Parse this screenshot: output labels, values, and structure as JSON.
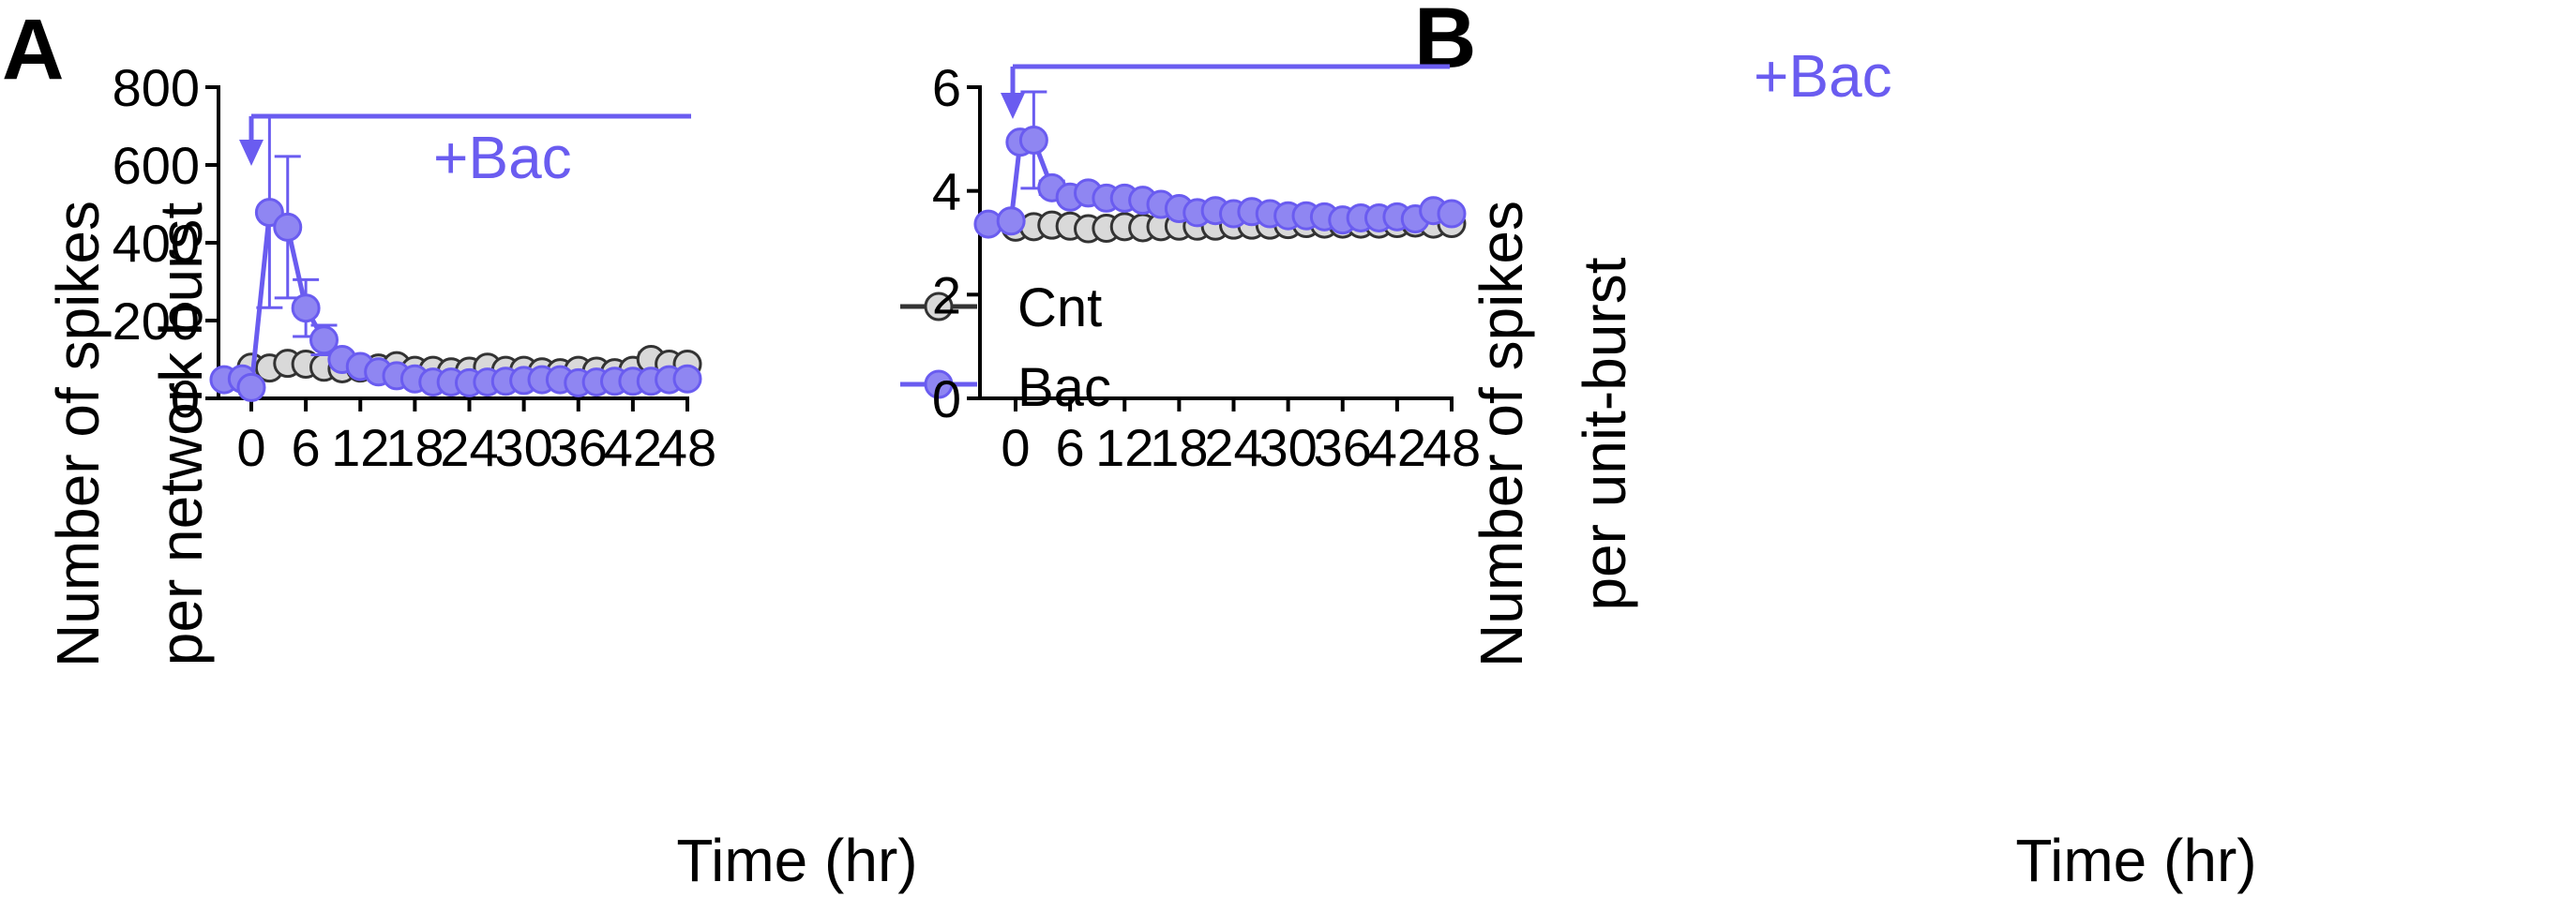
{
  "colors": {
    "cnt": "#333333",
    "cnt_fill": "#d9d9d9",
    "bac": "#6a5cf0",
    "bac_fill": "#8f86f2"
  },
  "chart_data": [
    {
      "type": "scatter",
      "panel": "A",
      "annotation": "+Bac",
      "ylabel_lines": [
        "Number of spikes",
        "per network burst"
      ],
      "xlabel": "Time (hr)",
      "xlim": [
        -3,
        48
      ],
      "ylim": [
        0,
        800
      ],
      "xticks": [
        0,
        6,
        12,
        18,
        24,
        30,
        36,
        42,
        48
      ],
      "yticks": [
        0,
        200,
        400,
        600,
        800
      ],
      "legend": {
        "position": "top-right",
        "entries": [
          "Cnt",
          "Bac"
        ]
      },
      "series": [
        {
          "name": "Cnt",
          "x": [
            0,
            2,
            4,
            6,
            8,
            10,
            12,
            14,
            16,
            18,
            20,
            22,
            24,
            26,
            28,
            30,
            32,
            34,
            36,
            38,
            40,
            42,
            44,
            46,
            48
          ],
          "y": [
            80,
            78,
            90,
            88,
            80,
            76,
            78,
            78,
            84,
            72,
            72,
            68,
            70,
            80,
            72,
            72,
            68,
            66,
            72,
            70,
            66,
            72,
            100,
            88,
            88
          ],
          "err": [
            0,
            0,
            18,
            18,
            0,
            0,
            0,
            14,
            14,
            12,
            12,
            0,
            0,
            18,
            14,
            0,
            0,
            0,
            18,
            14,
            0,
            0,
            18,
            14,
            0
          ]
        },
        {
          "name": "Bac",
          "x": [
            -3,
            -1,
            0,
            2,
            4,
            6,
            8,
            10,
            12,
            14,
            16,
            18,
            20,
            22,
            24,
            26,
            28,
            30,
            32,
            34,
            36,
            38,
            40,
            42,
            44,
            46,
            48
          ],
          "y": [
            48,
            50,
            28,
            478,
            440,
            232,
            150,
            100,
            82,
            68,
            58,
            50,
            42,
            42,
            40,
            42,
            44,
            46,
            48,
            48,
            40,
            42,
            44,
            44,
            44,
            48,
            50
          ],
          "err": [
            0,
            0,
            0,
            245,
            182,
            73,
            38,
            0,
            0,
            0,
            0,
            0,
            0,
            0,
            0,
            0,
            0,
            0,
            0,
            0,
            0,
            0,
            0,
            0,
            0,
            0,
            0
          ]
        }
      ]
    },
    {
      "type": "scatter",
      "panel": "B",
      "annotation": "+Bac",
      "ylabel_lines": [
        "Number of spikes",
        "per unit-burst"
      ],
      "xlabel": "Time (hr)",
      "xlim": [
        -3,
        48
      ],
      "ylim": [
        0,
        6
      ],
      "xticks": [
        0,
        6,
        12,
        18,
        24,
        30,
        36,
        42,
        48
      ],
      "yticks": [
        0,
        2,
        4,
        6
      ],
      "series": [
        {
          "name": "Cnt",
          "x": [
            0,
            2,
            4,
            6,
            8,
            10,
            12,
            14,
            16,
            18,
            20,
            22,
            24,
            26,
            28,
            30,
            32,
            34,
            36,
            38,
            40,
            42,
            44,
            46,
            48
          ],
          "y": [
            3.3,
            3.31,
            3.34,
            3.32,
            3.27,
            3.28,
            3.31,
            3.29,
            3.31,
            3.32,
            3.32,
            3.32,
            3.34,
            3.34,
            3.34,
            3.35,
            3.37,
            3.36,
            3.36,
            3.36,
            3.36,
            3.37,
            3.38,
            3.36,
            3.37
          ],
          "err": [
            0,
            0,
            0,
            0,
            0,
            0,
            0,
            0,
            0,
            0,
            0,
            0,
            0,
            0,
            0,
            0,
            0,
            0,
            0,
            0,
            0,
            0,
            0,
            0,
            0
          ]
        },
        {
          "name": "Bac",
          "x": [
            -3,
            -0.5,
            0.5,
            2,
            4,
            6,
            8,
            10,
            12,
            14,
            16,
            18,
            20,
            22,
            24,
            26,
            28,
            30,
            32,
            34,
            36,
            38,
            40,
            42,
            44,
            46,
            48
          ],
          "y": [
            3.36,
            3.42,
            4.94,
            4.98,
            4.06,
            3.88,
            3.96,
            3.86,
            3.86,
            3.82,
            3.74,
            3.66,
            3.58,
            3.62,
            3.56,
            3.6,
            3.56,
            3.52,
            3.52,
            3.5,
            3.44,
            3.48,
            3.48,
            3.5,
            3.46,
            3.62,
            3.56
          ],
          "err": [
            0,
            0,
            0,
            0.93,
            0.13,
            0.07,
            0,
            0,
            0,
            0,
            0,
            0,
            0,
            0,
            0,
            0,
            0,
            0,
            0,
            0,
            0,
            0,
            0,
            0,
            0,
            0,
            0
          ]
        }
      ]
    }
  ]
}
